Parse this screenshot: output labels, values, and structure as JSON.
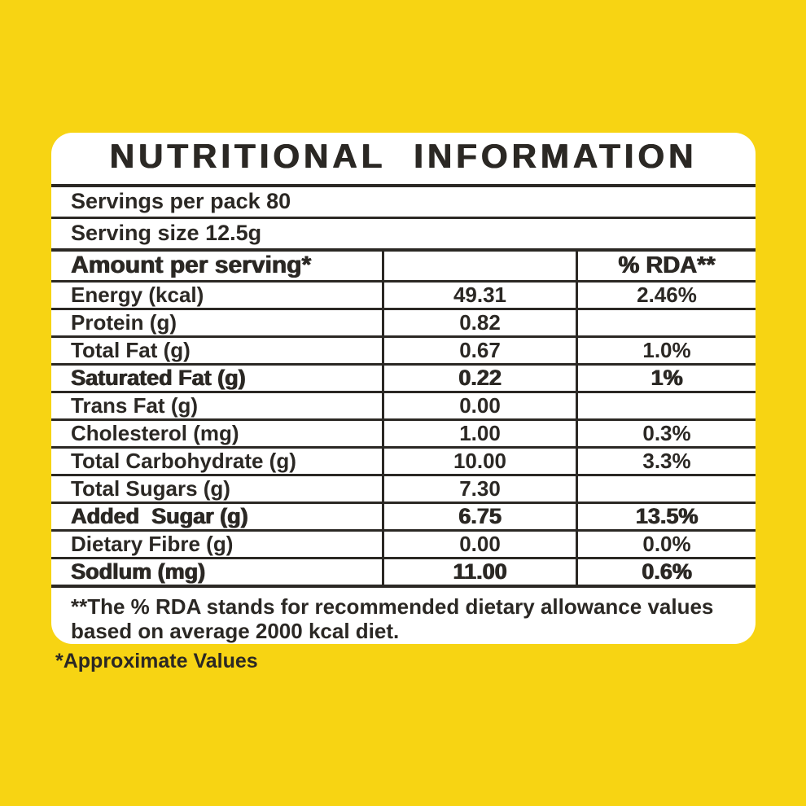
{
  "colors": {
    "background": "#F7D413",
    "card": "#FFFFFF",
    "ink": "#2B2824"
  },
  "label": {
    "title": "NUTRITIONAL INFORMATION",
    "servings_per_pack": "Servings per pack 80",
    "serving_size": "Serving size 12.5g",
    "table": {
      "header": {
        "amount": "Amount per serving*",
        "value": "",
        "rda": "% RDA**"
      },
      "rows": [
        {
          "label": "Energy (kcal)",
          "value": "49.31",
          "rda": "2.46%"
        },
        {
          "label": "Protein (g)",
          "value": "0.82",
          "rda": ""
        },
        {
          "label": "Total Fat (g)",
          "value": "0.67",
          "rda": "1.0%"
        },
        {
          "label": "Saturated Fat (g)",
          "value": "0.22",
          "rda": "1%"
        },
        {
          "label": "Trans Fat (g)",
          "value": "0.00",
          "rda": ""
        },
        {
          "label": "Cholesterol (mg)",
          "value": "1.00",
          "rda": "0.3%"
        },
        {
          "label": "Total Carbohydrate (g)",
          "value": "10.00",
          "rda": "3.3%"
        },
        {
          "label": "Total Sugars (g)",
          "value": "7.30",
          "rda": ""
        },
        {
          "label": "Added  Sugar (g)",
          "value": "6.75",
          "rda": "13.5%"
        },
        {
          "label": "Dietary Fibre (g)",
          "value": "0.00",
          "rda": "0.0%"
        },
        {
          "label": "Sodlum (mg)",
          "value": "11.00",
          "rda": "0.6%"
        }
      ]
    },
    "footnote_line1": "**The % RDA stands for recommended dietary allowance values",
    "footnote_line2": "based on average 2000 kcal diet.",
    "approximate_note": "*Approximate Values"
  }
}
